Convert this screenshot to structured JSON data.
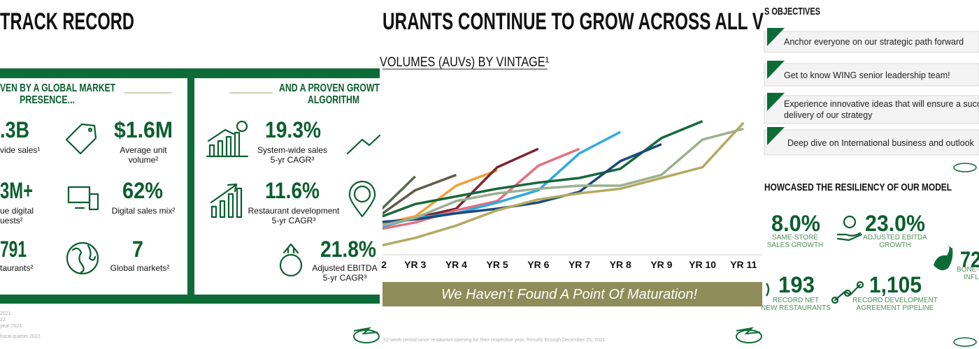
{
  "slide1": {
    "title": "TRACK RECORD",
    "left_panel": {
      "heading": [
        "VEN BY A GLOBAL MARKET",
        "PRESENCE..."
      ],
      "stats": [
        {
          "value": ".3B",
          "label": [
            "vide sales¹"
          ]
        },
        {
          "value": "$1.6M",
          "label": [
            "Average unit",
            "volume²"
          ]
        },
        {
          "value": "3M+",
          "label": [
            "ue digital",
            "uests²"
          ]
        },
        {
          "value": "62%",
          "label": [
            "Digital sales mix²"
          ]
        },
        {
          "value": "791",
          "label": [
            "taurants²"
          ]
        },
        {
          "value": "7",
          "label": [
            "Global markets²"
          ]
        }
      ]
    },
    "right_panel": {
      "heading": [
        "AND A PROVEN GROWT",
        "ALGORITHM"
      ],
      "stats": [
        {
          "value": "19.3%",
          "label": [
            "System-wide sales",
            "5-yr CAGR³"
          ]
        },
        {
          "value": "11.6%",
          "label": [
            "Restaurant development",
            "5-yr CAGR³"
          ]
        },
        {
          "value": "21.8%",
          "label": [
            "Adjusted EBITDA",
            "5-yr CAGR³"
          ]
        }
      ]
    },
    "footnotes": [
      "2021.",
      "22.",
      "year 2021.",
      "fiscal quarter 2022."
    ]
  },
  "slide2": {
    "title": "URANTS CONTINUE TO GROW ACROSS ALL V",
    "subtitle": "VOLUMES (AUVs) BY VINTAGE¹",
    "banner": "We Haven’t Found A Point Of Maturation!",
    "footnote": "52-week period since restaurant opening for their respective year. Results through December 25, 2021."
  },
  "chart_data": {
    "type": "line",
    "categories": [
      "2",
      "YR 3",
      "YR 4",
      "YR 5",
      "YR 6",
      "YR 7",
      "YR 8",
      "YR 9",
      "YR 10",
      "YR 11"
    ],
    "ylim": [
      0,
      100
    ],
    "series": [
      {
        "color": "#55694d",
        "values": [
          25,
          51,
          null,
          null,
          null,
          null,
          null,
          null,
          null,
          null
        ]
      },
      {
        "color": "#5e5b47",
        "values": [
          23,
          42,
          52,
          null,
          null,
          null,
          null,
          null,
          null,
          null
        ]
      },
      {
        "color": "#f0a032",
        "values": [
          19,
          25,
          45,
          55,
          null,
          null,
          null,
          null,
          null,
          null
        ]
      },
      {
        "color": "#7b2531",
        "values": [
          17,
          24,
          30,
          57,
          69,
          null,
          null,
          null,
          null,
          null
        ]
      },
      {
        "color": "#e2707f",
        "values": [
          16,
          21,
          29,
          35,
          58,
          69,
          null,
          null,
          null,
          null
        ]
      },
      {
        "color": "#2eaae2",
        "values": [
          17,
          24,
          27,
          34,
          42,
          66,
          80,
          null,
          null,
          null
        ]
      },
      {
        "color": "#17693a",
        "values": [
          23,
          33,
          38,
          43,
          47,
          50,
          56,
          76,
          87,
          null
        ]
      },
      {
        "color": "#1b4a7b",
        "values": [
          21,
          23,
          27,
          30,
          34,
          41,
          61,
          72,
          null,
          null
        ]
      },
      {
        "color": "#9bb091",
        "values": [
          18,
          24,
          35,
          40,
          43,
          45,
          45,
          52,
          75,
          82
        ]
      },
      {
        "color": "#b3aa62",
        "values": [
          5,
          11,
          19,
          29,
          36,
          40,
          43,
          50,
          57,
          86
        ]
      }
    ]
  },
  "slide3": {
    "title": "S OBJECTIVES",
    "objectives": [
      [
        "Anchor everyone on our strategic path forward"
      ],
      [
        "Get to know WING senior leadership team!"
      ],
      [
        "Experience innovative ideas that will ensure a successful",
        "delivery of our strategy"
      ],
      [
        "Deep dive on International business and outlook"
      ]
    ],
    "heading": "HOWCASED THE RESILIENCY OF OUR MODEL",
    "stats": [
      {
        "value": "8.0%",
        "label": [
          "SAME-STORE",
          "SALES GROWTH"
        ]
      },
      {
        "value": "23.0%",
        "label": [
          "ADJUSTED EBITDA",
          "GROWTH"
        ]
      },
      {
        "value": "72",
        "label": [
          "BONE-I",
          "INFLA"
        ]
      },
      {
        "value": "193",
        "label": [
          "RECORD NET",
          "NEW RESTAURANTS"
        ]
      },
      {
        "value": "1,105",
        "label": [
          "RECORD DEVELOPMENT",
          "AGREEMENT PIPELINE"
        ]
      }
    ]
  }
}
